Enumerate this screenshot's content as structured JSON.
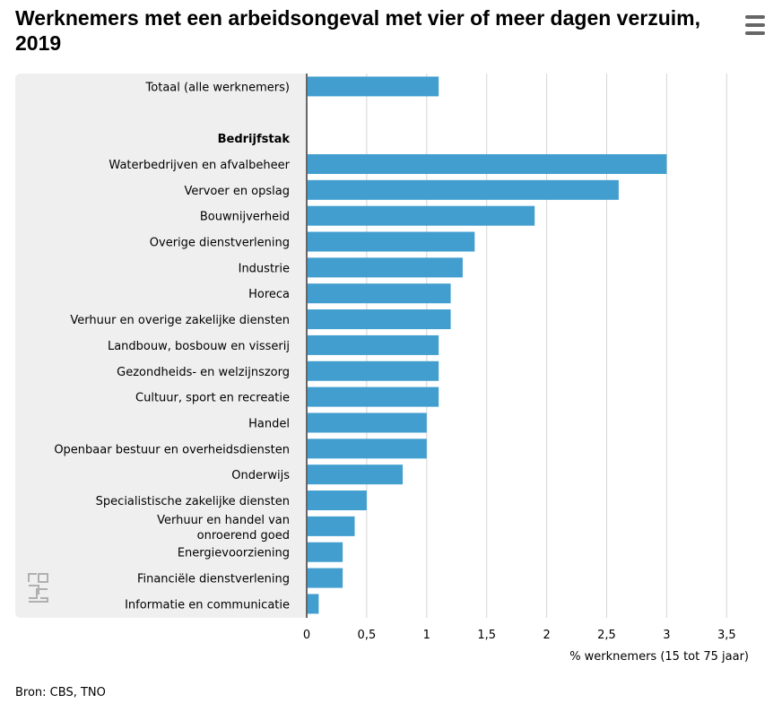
{
  "title": "Werknemers met een arbeidsongeval met vier of meer dagen verzuim, 2019",
  "menu_icon": "hamburger-menu-icon",
  "logo_icon": "cbs-logo-icon",
  "source": "Bron: CBS, TNO",
  "colors": {
    "bar": "#419ecf",
    "label_bg": "#efefef",
    "grid": "#d6d6d6",
    "axis": "#666666"
  },
  "chart_data": {
    "type": "bar",
    "orientation": "horizontal",
    "title": "Werknemers met een arbeidsongeval met vier of meer dagen verzuim, 2019",
    "xlabel": "% werknemers (15 tot 75 jaar)",
    "ylabel": "",
    "xlim": [
      0,
      3.5
    ],
    "xticks": [
      "0",
      "0,5",
      "1",
      "1,5",
      "2",
      "2,5",
      "3",
      "3,5"
    ],
    "grid": true,
    "categories": [
      "Totaal (alle werknemers)",
      "",
      "Bedrijfstak",
      "Waterbedrijven en afvalbeheer",
      "Vervoer en opslag",
      "Bouwnijverheid",
      "Overige dienstverlening",
      "Industrie",
      "Horeca",
      "Verhuur en overige zakelijke diensten",
      "Landbouw, bosbouw en visserij",
      "Gezondheids- en welzijnszorg",
      "Cultuur, sport en recreatie",
      "Handel",
      "Openbaar bestuur en overheidsdiensten",
      "Onderwijs",
      "Specialistische zakelijke diensten",
      "Verhuur en handel van onroerend goed",
      "Energievoorziening",
      "Financiële dienstverlening",
      "Informatie en communicatie"
    ],
    "bold_categories": [
      "Bedrijfstak"
    ],
    "values": [
      1.1,
      null,
      null,
      3.0,
      2.6,
      1.9,
      1.4,
      1.3,
      1.2,
      1.2,
      1.1,
      1.1,
      1.1,
      1.0,
      1.0,
      0.8,
      0.5,
      0.4,
      0.3,
      0.3,
      0.1
    ]
  }
}
